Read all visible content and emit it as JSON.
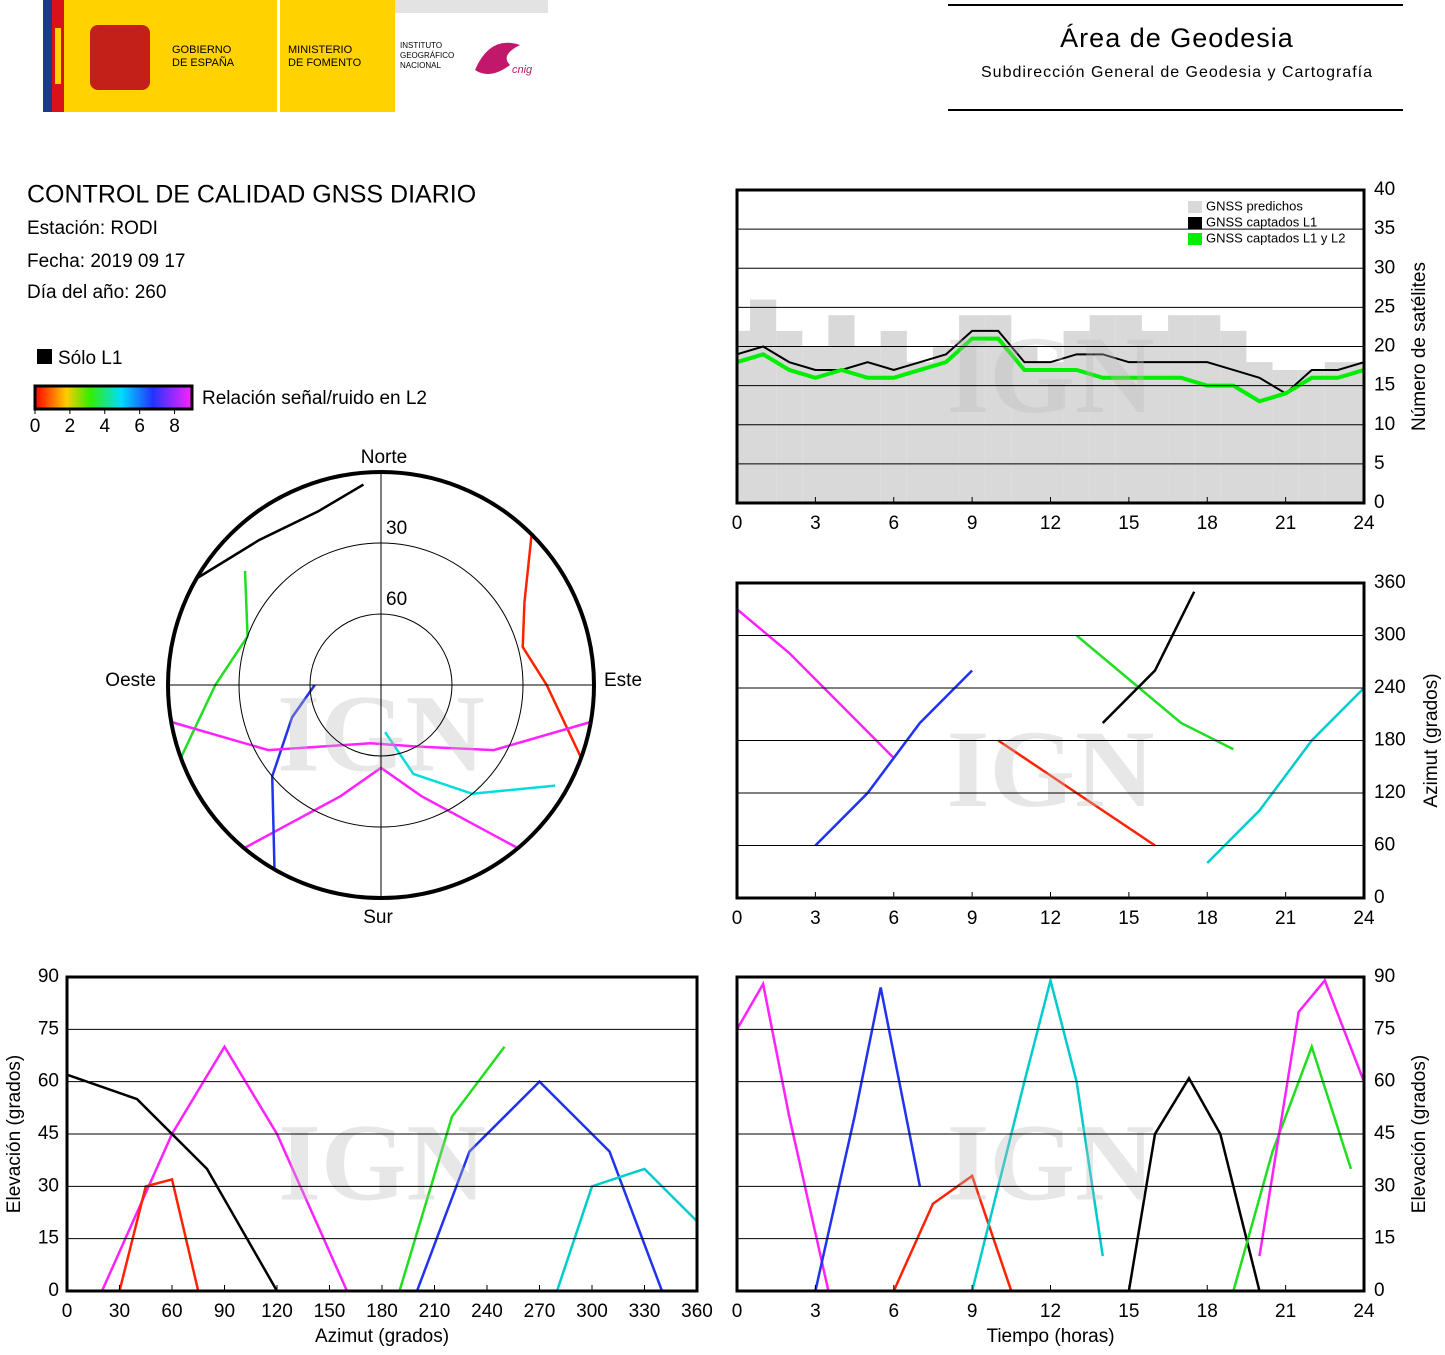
{
  "header": {
    "government": [
      "GOBIERNO",
      "DE ESPAÑA"
    ],
    "ministry": [
      "MINISTERIO",
      "DE FOMENTO"
    ],
    "institute": [
      "INSTITUTO",
      "GEOGRÁFICO",
      "NACIONAL"
    ],
    "cnig": "cnig",
    "area_title": "Área de Geodesia",
    "area_subtitle": "Subdirección General de Geodesia y Cartografía"
  },
  "report": {
    "title": "CONTROL DE CALIDAD GNSS DIARIO",
    "station": "Estación: RODI",
    "date": "Fecha: 2019 09 17",
    "day_of_year": "Día del año: 260"
  },
  "legend": {
    "l1_only": "Sólo L1",
    "snr_label": "Relación señal/ruido en L2",
    "snr_ticks": [
      0,
      2,
      4,
      6,
      8
    ],
    "snr_lim": [
      0,
      9
    ]
  },
  "watermark": "IGN",
  "chart_data": [
    {
      "type": "polar",
      "directions": {
        "north": "Norte",
        "south": "Sur",
        "east": "Este",
        "west": "Oeste"
      },
      "rings": [
        30,
        60
      ],
      "rlim": [
        90,
        0
      ],
      "series": [
        {
          "color": "#ff22ff",
          "azimuth": [
            140,
            160,
            180,
            200,
            220
          ],
          "elevation": [
            0,
            40,
            55,
            40,
            0
          ]
        },
        {
          "color": "#2233ee",
          "azimuth": [
            210,
            230,
            250,
            270
          ],
          "elevation": [
            0,
            30,
            50,
            62
          ]
        },
        {
          "color": "#000000",
          "azimuth": [
            300,
            320,
            340,
            355
          ],
          "elevation": [
            0,
            10,
            12,
            5
          ]
        },
        {
          "color": "#ff2200",
          "azimuth": [
            45,
            60,
            75,
            90,
            110
          ],
          "elevation": [
            0,
            20,
            28,
            20,
            0
          ]
        },
        {
          "color": "#00dddd",
          "azimuth": [
            120,
            140,
            160,
            175
          ],
          "elevation": [
            5,
            30,
            50,
            70
          ]
        },
        {
          "color": "#22dd22",
          "azimuth": [
            250,
            270,
            290,
            310
          ],
          "elevation": [
            0,
            20,
            30,
            15
          ]
        },
        {
          "color": "#ff22ff",
          "azimuth": [
            100,
            120,
            150,
            190,
            240,
            260
          ],
          "elevation": [
            0,
            35,
            60,
            65,
            35,
            0
          ]
        }
      ]
    },
    {
      "type": "count",
      "xlim": [
        0,
        24
      ],
      "xticks": [
        0,
        3,
        6,
        9,
        12,
        15,
        18,
        21,
        24
      ],
      "ylim": [
        0,
        40
      ],
      "yticks": [
        0,
        5,
        10,
        15,
        20,
        25,
        30,
        35,
        40
      ],
      "grid": true,
      "y_label": "Número de satélites",
      "x": [
        0,
        1,
        2,
        3,
        4,
        5,
        6,
        7,
        8,
        9,
        10,
        11,
        12,
        13,
        14,
        15,
        16,
        17,
        18,
        19,
        20,
        21,
        22,
        23,
        24
      ],
      "series": [
        {
          "name": "GNSS predichos",
          "color": "#d9d9d9",
          "kind": "bars",
          "values": [
            22,
            26,
            22,
            20,
            24,
            20,
            22,
            18,
            20,
            24,
            24,
            20,
            18,
            22,
            24,
            24,
            22,
            24,
            24,
            22,
            18,
            17,
            17,
            18,
            18
          ]
        },
        {
          "name": "GNSS captados L1",
          "color": "#000000",
          "kind": "line",
          "values": [
            19,
            20,
            18,
            17,
            17,
            18,
            17,
            18,
            19,
            22,
            22,
            18,
            18,
            19,
            19,
            18,
            18,
            18,
            18,
            17,
            16,
            14,
            17,
            17,
            18
          ]
        },
        {
          "name": "GNSS captados L1 y L2",
          "color": "#00ee00",
          "kind": "line",
          "values": [
            18,
            19,
            17,
            16,
            17,
            16,
            16,
            17,
            18,
            21,
            21,
            17,
            17,
            17,
            16,
            16,
            16,
            16,
            15,
            15,
            13,
            14,
            16,
            16,
            17
          ]
        }
      ]
    },
    {
      "type": "tracks",
      "xlim": [
        0,
        24
      ],
      "xticks": [
        0,
        3,
        6,
        9,
        12,
        15,
        18,
        21,
        24
      ],
      "ylim": [
        0,
        360
      ],
      "yticks": [
        0,
        60,
        120,
        180,
        240,
        300,
        360
      ],
      "grid": true,
      "y_label": "Azimut (grados)",
      "series": [
        {
          "color": "#ff22ff",
          "x": [
            0,
            2,
            4,
            6
          ],
          "values": [
            330,
            280,
            220,
            160
          ]
        },
        {
          "color": "#2233ee",
          "x": [
            3,
            5,
            7,
            9
          ],
          "values": [
            60,
            120,
            200,
            260
          ]
        },
        {
          "color": "#ff2200",
          "x": [
            10,
            12,
            14,
            16
          ],
          "values": [
            180,
            140,
            100,
            60
          ]
        },
        {
          "color": "#22dd22",
          "x": [
            13,
            15,
            17,
            19
          ],
          "values": [
            300,
            250,
            200,
            170
          ]
        },
        {
          "color": "#000000",
          "x": [
            14,
            16,
            17.5
          ],
          "values": [
            200,
            260,
            350
          ]
        },
        {
          "color": "#00cccc",
          "x": [
            18,
            20,
            22,
            24
          ],
          "values": [
            40,
            100,
            180,
            240
          ]
        }
      ]
    },
    {
      "type": "tracks",
      "xlim": [
        0,
        360
      ],
      "xticks": [
        0,
        30,
        60,
        90,
        120,
        150,
        180,
        210,
        240,
        270,
        300,
        330,
        360
      ],
      "ylim": [
        0,
        90
      ],
      "yticks": [
        0,
        15,
        30,
        45,
        60,
        75,
        90
      ],
      "grid": true,
      "x_label": "Azimut (grados)",
      "y_label": "Elevación (grados)",
      "series": [
        {
          "color": "#ff22ff",
          "x": [
            20,
            60,
            90,
            120,
            160
          ],
          "values": [
            0,
            45,
            70,
            45,
            0
          ]
        },
        {
          "color": "#2233ee",
          "x": [
            200,
            230,
            270,
            310,
            340
          ],
          "values": [
            0,
            40,
            60,
            40,
            0
          ]
        },
        {
          "color": "#000000",
          "x": [
            0,
            40,
            80,
            120
          ],
          "values": [
            62,
            55,
            35,
            0
          ]
        },
        {
          "color": "#ff2200",
          "x": [
            30,
            45,
            60,
            75
          ],
          "values": [
            0,
            30,
            32,
            0
          ]
        },
        {
          "color": "#00cccc",
          "x": [
            280,
            300,
            330,
            360
          ],
          "values": [
            0,
            30,
            35,
            20
          ]
        },
        {
          "color": "#22dd22",
          "x": [
            190,
            220,
            250
          ],
          "values": [
            0,
            50,
            70
          ]
        }
      ]
    },
    {
      "type": "tracks",
      "xlim": [
        0,
        24
      ],
      "xticks": [
        0,
        3,
        6,
        9,
        12,
        15,
        18,
        21,
        24
      ],
      "ylim": [
        0,
        90
      ],
      "yticks": [
        0,
        15,
        30,
        45,
        60,
        75,
        90
      ],
      "grid": true,
      "x_label": "Tiempo (horas)",
      "y_label": "Elevación (grados)",
      "series": [
        {
          "color": "#ff22ff",
          "x": [
            0,
            1,
            2,
            3.5
          ],
          "values": [
            75,
            88,
            50,
            0
          ]
        },
        {
          "color": "#2233ee",
          "x": [
            3,
            4.5,
            5.5,
            7
          ],
          "values": [
            0,
            50,
            87,
            30
          ]
        },
        {
          "color": "#000000",
          "x": [
            15,
            16,
            17.3,
            18.5,
            20
          ],
          "values": [
            0,
            45,
            61,
            45,
            0
          ]
        },
        {
          "color": "#ff2200",
          "x": [
            6,
            7.5,
            9,
            10.5
          ],
          "values": [
            0,
            25,
            33,
            0
          ]
        },
        {
          "color": "#00cccc",
          "x": [
            9,
            11,
            12,
            13,
            14
          ],
          "values": [
            0,
            60,
            89,
            60,
            10
          ]
        },
        {
          "color": "#22dd22",
          "x": [
            19,
            20.5,
            22,
            23.5
          ],
          "values": [
            0,
            40,
            70,
            35
          ]
        },
        {
          "color": "#ff22ff",
          "x": [
            20,
            21.5,
            22.5,
            24
          ],
          "values": [
            10,
            80,
            89,
            60
          ]
        }
      ]
    }
  ]
}
